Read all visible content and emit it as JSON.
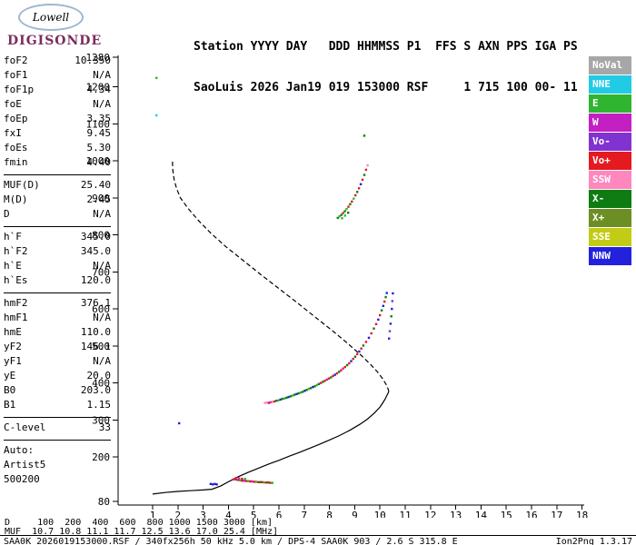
{
  "header": {
    "logo_line1": "Lowell",
    "logo_line2": "DIGISONDE",
    "title_line1": "Station YYYY DAY   DDD HHMMSS P1  FFS S AXN PPS IGA PS",
    "title_line2": "SaoLuis 2026 Jan19 019 153000 RSF     1 715 100 00- 11"
  },
  "params": {
    "groups": [
      {
        "rows": [
          [
            "foF2",
            "10.350"
          ],
          [
            "foF1",
            "N/A"
          ],
          [
            "foF1p",
            "4.34"
          ],
          [
            "foE",
            "N/A"
          ],
          [
            "foEp",
            "3.35"
          ],
          [
            "fxI",
            "9.45"
          ],
          [
            "foEs",
            "5.30"
          ],
          [
            "fmin",
            "4.40"
          ]
        ]
      },
      {
        "rows": [
          [
            "MUF(D)",
            "25.40"
          ],
          [
            "M(D)",
            "2.45"
          ],
          [
            "D",
            "N/A"
          ]
        ]
      },
      {
        "rows": [
          [
            "h`F",
            "345.0"
          ],
          [
            "h`F2",
            "345.0"
          ],
          [
            "h`E",
            "N/A"
          ],
          [
            "h`Es",
            "120.0"
          ]
        ]
      },
      {
        "rows": [
          [
            "hmF2",
            "376.1"
          ],
          [
            "hmF1",
            "N/A"
          ],
          [
            "hmE",
            "110.0"
          ],
          [
            "yF2",
            "146.1"
          ],
          [
            "yF1",
            "N/A"
          ],
          [
            "yE",
            "20.0"
          ],
          [
            "B0",
            "203.0"
          ],
          [
            "B1",
            "1.15"
          ]
        ]
      },
      {
        "rows": [
          [
            "C-level",
            "33"
          ]
        ]
      },
      {
        "rows": [
          [
            "Auto:",
            ""
          ],
          [
            "Artist5",
            ""
          ],
          [
            "500200",
            ""
          ]
        ]
      }
    ]
  },
  "legend": {
    "position": "right",
    "items": [
      {
        "label": "NoVal",
        "color": "#A7A7A7"
      },
      {
        "label": "NNE",
        "color": "#21CBE6"
      },
      {
        "label": "E",
        "color": "#2FB52F"
      },
      {
        "label": "W",
        "color": "#C31FC3"
      },
      {
        "label": "Vo-",
        "color": "#8133D1"
      },
      {
        "label": "Vo+",
        "color": "#E51A20"
      },
      {
        "label": "SSW",
        "color": "#FF87BE"
      },
      {
        "label": "X-",
        "color": "#0E7C12"
      },
      {
        "label": "X+",
        "color": "#6D8E23"
      },
      {
        "label": "SSE",
        "color": "#C2CC17"
      },
      {
        "label": "NNW",
        "color": "#2222DD"
      }
    ]
  },
  "chart_data": {
    "type": "scatter",
    "title": "",
    "xlabel": "",
    "ylabel": "",
    "grid": false,
    "xlim": [
      1,
      18
    ],
    "ylim": [
      80,
      1280
    ],
    "x_ticks": [
      1,
      2,
      3,
      4,
      5,
      6,
      7,
      8,
      9,
      10,
      11,
      12,
      13,
      14,
      15,
      16,
      17,
      18
    ],
    "y_ticks": [
      80,
      200,
      300,
      400,
      500,
      600,
      700,
      800,
      900,
      1000,
      1100,
      1200,
      1280
    ],
    "profile_lines": [
      {
        "name": "true-height-profile",
        "style": "solid",
        "color": "#000000",
        "points": [
          [
            1.0,
            100
          ],
          [
            1.5,
            104
          ],
          [
            2.0,
            107
          ],
          [
            2.5,
            109
          ],
          [
            3.0,
            111
          ],
          [
            3.35,
            113
          ],
          [
            3.7,
            122
          ],
          [
            4.0,
            133
          ],
          [
            4.4,
            147
          ],
          [
            4.8,
            159
          ],
          [
            5.2,
            170
          ],
          [
            5.6,
            181
          ],
          [
            6.0,
            191
          ],
          [
            6.4,
            202
          ],
          [
            6.8,
            212
          ],
          [
            7.2,
            223
          ],
          [
            7.6,
            234
          ],
          [
            8.0,
            246
          ],
          [
            8.4,
            258
          ],
          [
            8.8,
            272
          ],
          [
            9.2,
            288
          ],
          [
            9.5,
            302
          ],
          [
            9.8,
            320
          ],
          [
            10.0,
            335
          ],
          [
            10.1,
            345
          ],
          [
            10.2,
            356
          ],
          [
            10.28,
            367
          ],
          [
            10.33,
            374
          ],
          [
            10.35,
            376
          ]
        ]
      },
      {
        "name": "topside-extrapolation",
        "style": "dashed",
        "color": "#000000",
        "points": [
          [
            10.35,
            376
          ],
          [
            10.33,
            382
          ],
          [
            10.25,
            395
          ],
          [
            10.1,
            412
          ],
          [
            9.9,
            430
          ],
          [
            9.6,
            452
          ],
          [
            9.2,
            478
          ],
          [
            8.7,
            508
          ],
          [
            8.1,
            542
          ],
          [
            7.4,
            580
          ],
          [
            6.7,
            618
          ],
          [
            6.0,
            655
          ],
          [
            5.3,
            692
          ],
          [
            4.6,
            730
          ],
          [
            3.9,
            768
          ],
          [
            3.3,
            805
          ],
          [
            2.8,
            840
          ],
          [
            2.4,
            872
          ],
          [
            2.1,
            900
          ],
          [
            1.95,
            925
          ],
          [
            1.85,
            950
          ],
          [
            1.8,
            975
          ],
          [
            1.78,
            1005
          ]
        ]
      }
    ],
    "echo_series": [
      {
        "name": "F-trace",
        "points": [
          [
            5.45,
            346,
            "SSW"
          ],
          [
            5.52,
            347,
            "SSW"
          ],
          [
            5.6,
            346,
            "Vo+"
          ],
          [
            5.67,
            348,
            "W"
          ],
          [
            5.74,
            349,
            "SSW"
          ],
          [
            5.82,
            350,
            "Vo+"
          ],
          [
            5.9,
            352,
            "X-"
          ],
          [
            5.98,
            353,
            "E"
          ],
          [
            6.06,
            355,
            "NNW"
          ],
          [
            6.14,
            357,
            "X-"
          ],
          [
            6.22,
            358,
            "E"
          ],
          [
            6.3,
            360,
            "X-"
          ],
          [
            6.38,
            362,
            "NNW"
          ],
          [
            6.46,
            364,
            "X-"
          ],
          [
            6.54,
            366,
            "E"
          ],
          [
            6.62,
            368,
            "X-"
          ],
          [
            6.7,
            370,
            "NNW"
          ],
          [
            6.78,
            372,
            "X-"
          ],
          [
            6.86,
            374,
            "E"
          ],
          [
            6.94,
            376,
            "X-"
          ],
          [
            7.02,
            379,
            "NNW"
          ],
          [
            7.1,
            381,
            "X-"
          ],
          [
            7.18,
            384,
            "E"
          ],
          [
            7.26,
            386,
            "X-"
          ],
          [
            7.34,
            389,
            "NNW"
          ],
          [
            7.42,
            391,
            "X-"
          ],
          [
            7.5,
            394,
            "E"
          ],
          [
            7.58,
            397,
            "X-"
          ],
          [
            7.66,
            400,
            "Vo+"
          ],
          [
            7.74,
            403,
            "X-"
          ],
          [
            7.82,
            406,
            "Vo+"
          ],
          [
            7.9,
            409,
            "W"
          ],
          [
            7.98,
            412,
            "Vo+"
          ],
          [
            8.06,
            415,
            "X-"
          ],
          [
            8.14,
            419,
            "Vo+"
          ],
          [
            8.22,
            422,
            "NNW"
          ],
          [
            8.3,
            426,
            "Vo+"
          ],
          [
            8.38,
            430,
            "X-"
          ],
          [
            8.46,
            434,
            "Vo+"
          ],
          [
            8.54,
            439,
            "W"
          ],
          [
            8.62,
            443,
            "Vo+"
          ],
          [
            8.7,
            448,
            "X-"
          ],
          [
            8.78,
            453,
            "Vo+"
          ],
          [
            8.86,
            459,
            "NNW"
          ],
          [
            8.94,
            465,
            "Vo+"
          ],
          [
            9.02,
            471,
            "X-"
          ],
          [
            9.1,
            478,
            "Vo+"
          ],
          [
            9.18,
            485,
            "NNW"
          ],
          [
            9.26,
            493,
            "Vo+"
          ],
          [
            9.34,
            501,
            "X-"
          ],
          [
            9.45,
            511,
            "Vo+"
          ],
          [
            9.56,
            522,
            "NNW"
          ],
          [
            9.66,
            534,
            "Vo+"
          ],
          [
            9.76,
            547,
            "X-"
          ],
          [
            9.85,
            559,
            "Vo+"
          ],
          [
            9.93,
            571,
            "NNW"
          ],
          [
            10.0,
            583,
            "Vo+"
          ],
          [
            10.07,
            596,
            "X-"
          ],
          [
            10.13,
            608,
            "NNW"
          ],
          [
            10.18,
            620,
            "Vo+"
          ],
          [
            10.23,
            632,
            "X-"
          ],
          [
            10.27,
            643,
            "NNW"
          ]
        ]
      },
      {
        "name": "F-trace-X",
        "points": [
          [
            10.36,
            520,
            "NNW"
          ],
          [
            10.39,
            540,
            "Vo-"
          ],
          [
            10.42,
            560,
            "NNW"
          ],
          [
            10.45,
            580,
            "X-"
          ],
          [
            10.47,
            600,
            "NNW"
          ],
          [
            10.49,
            621,
            "Vo-"
          ],
          [
            10.51,
            642,
            "NNW"
          ]
        ]
      },
      {
        "name": "second-hop-trace",
        "points": [
          [
            8.33,
            846,
            "X-"
          ],
          [
            8.4,
            850,
            "E"
          ],
          [
            8.47,
            854,
            "X-"
          ],
          [
            8.5,
            845,
            "E"
          ],
          [
            8.54,
            859,
            "Vo+"
          ],
          [
            8.61,
            864,
            "X-"
          ],
          [
            8.62,
            852,
            "E"
          ],
          [
            8.68,
            870,
            "E"
          ],
          [
            8.74,
            860,
            "X-"
          ],
          [
            8.75,
            876,
            "Vo+"
          ],
          [
            8.82,
            883,
            "X-"
          ],
          [
            8.89,
            890,
            "Vo+"
          ],
          [
            8.96,
            898,
            "E"
          ],
          [
            9.03,
            907,
            "Vo+"
          ],
          [
            9.1,
            916,
            "X-"
          ],
          [
            9.17,
            926,
            "Vo+"
          ],
          [
            9.24,
            937,
            "NNW"
          ],
          [
            9.31,
            949,
            "Vo+"
          ],
          [
            9.38,
            962,
            "X-"
          ],
          [
            9.45,
            976,
            "Vo+"
          ],
          [
            9.51,
            988,
            "SSW"
          ]
        ]
      },
      {
        "name": "Es-trace",
        "points": [
          [
            3.3,
            127,
            "NNW"
          ],
          [
            3.38,
            126,
            "NNW"
          ],
          [
            3.46,
            127,
            "NNW"
          ],
          [
            3.54,
            126,
            "NNW"
          ],
          [
            4.22,
            140,
            "Vo+"
          ],
          [
            4.3,
            139,
            "W"
          ],
          [
            4.3,
            143,
            "Vo+"
          ],
          [
            4.38,
            138,
            "Vo+"
          ],
          [
            4.42,
            142,
            "W"
          ],
          [
            4.46,
            137,
            "E"
          ],
          [
            4.54,
            136,
            "Vo+"
          ],
          [
            4.54,
            141,
            "Vo+"
          ],
          [
            4.62,
            136,
            "W"
          ],
          [
            4.66,
            141,
            "E"
          ],
          [
            4.7,
            135,
            "Vo+"
          ],
          [
            4.78,
            135,
            "E"
          ],
          [
            4.86,
            134,
            "Vo+"
          ],
          [
            4.94,
            134,
            "W"
          ],
          [
            5.02,
            133,
            "Vo+"
          ],
          [
            5.1,
            133,
            "E"
          ],
          [
            5.18,
            132,
            "Vo+"
          ],
          [
            5.26,
            132,
            "X-"
          ],
          [
            5.34,
            132,
            "Vo+"
          ],
          [
            5.42,
            131,
            "E"
          ],
          [
            5.5,
            131,
            "Vo+"
          ],
          [
            5.58,
            131,
            "X-"
          ],
          [
            5.66,
            130,
            "Vo+"
          ],
          [
            5.74,
            130,
            "E"
          ]
        ]
      },
      {
        "name": "isolated-echoes",
        "points": [
          [
            1.15,
            1224,
            "E"
          ],
          [
            1.15,
            1123,
            "NNE"
          ],
          [
            2.05,
            291,
            "NNW"
          ],
          [
            9.38,
            1068,
            "X-"
          ]
        ]
      }
    ]
  },
  "footer": {
    "d_row": {
      "label": "D",
      "values": [
        "100",
        "200",
        "400",
        "600",
        "800",
        "1000",
        "1500",
        "3000"
      ],
      "unit": "[km]"
    },
    "muf_row": {
      "label": "MUF",
      "values": [
        "10.7",
        "10.8",
        "11.1",
        "11.7",
        "12.5",
        "13.6",
        "17.0",
        "25.4"
      ],
      "unit": "[MHz]"
    },
    "status_left": "SAA0K_2026019153000.RSF / 340fx256h 50 kHz 5.0 km / DPS-4 SAA0K 903 / 2.6 S 315.8 E",
    "status_right": "Ion2Png 1.3.17"
  }
}
